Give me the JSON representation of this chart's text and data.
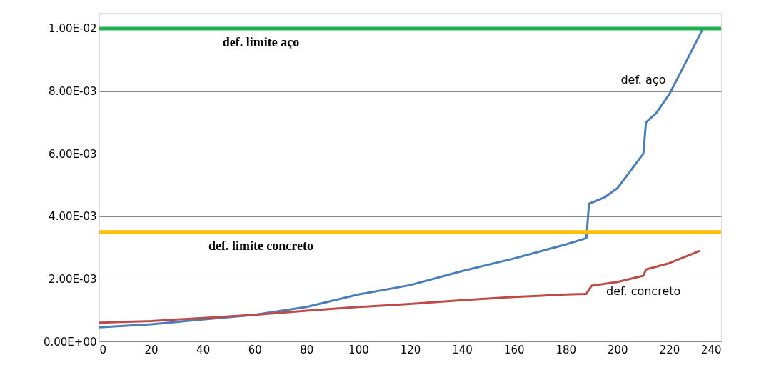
{
  "chart_data": {
    "type": "line",
    "xlim": [
      0,
      240
    ],
    "xticks": [
      0,
      20,
      40,
      60,
      80,
      100,
      120,
      140,
      160,
      180,
      200,
      220,
      240
    ],
    "ylim": [
      0,
      0.0105
    ],
    "yticks": [
      {
        "value": 0,
        "label": "0.00E+00"
      },
      {
        "value": 0.002,
        "label": "2.00E-03"
      },
      {
        "value": 0.004,
        "label": "4.00E-03"
      },
      {
        "value": 0.006,
        "label": "6.00E-03"
      },
      {
        "value": 0.008,
        "label": "8.00E-03"
      },
      {
        "value": 0.01,
        "label": "1.00E-02"
      }
    ],
    "grid": "y",
    "marker": "none",
    "line_style": "solid",
    "series": [
      {
        "name": "def. aço",
        "color": "#4a7ebb",
        "x": [
          0,
          20,
          40,
          60,
          80,
          100,
          120,
          140,
          160,
          180,
          188,
          189,
          195,
          200,
          210,
          211,
          215,
          220,
          225,
          233
        ],
        "values": [
          0.00045,
          0.00055,
          0.0007,
          0.00085,
          0.0011,
          0.0015,
          0.0018,
          0.00225,
          0.00265,
          0.0031,
          0.0033,
          0.0044,
          0.0046,
          0.0049,
          0.006,
          0.007,
          0.0073,
          0.0079,
          0.0087,
          0.01
        ]
      },
      {
        "name": "def. concreto",
        "color": "#be4b48",
        "x": [
          0,
          20,
          40,
          60,
          80,
          100,
          120,
          140,
          160,
          180,
          188,
          190,
          200,
          210,
          211,
          220,
          232
        ],
        "values": [
          0.0006,
          0.00065,
          0.00075,
          0.00085,
          0.00098,
          0.0011,
          0.0012,
          0.00132,
          0.00142,
          0.0015,
          0.00152,
          0.00178,
          0.0019,
          0.0021,
          0.0023,
          0.0025,
          0.0029
        ]
      }
    ],
    "ref_lines": [
      {
        "axis": "y",
        "value": 0.01,
        "label": "def. limite aço",
        "color": "#22b14c"
      },
      {
        "axis": "y",
        "value": 0.0035,
        "label": "def. limite concreto",
        "color": "#ffc000"
      }
    ]
  }
}
